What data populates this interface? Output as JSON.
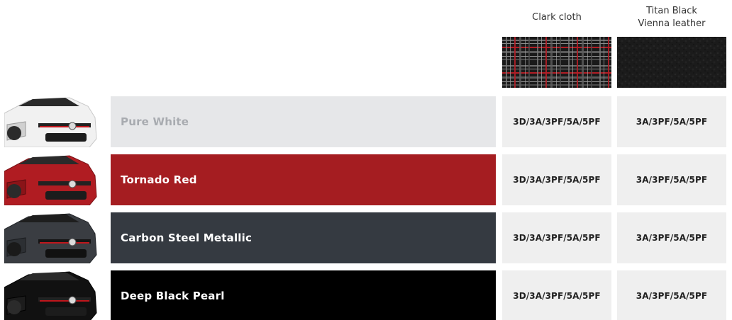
{
  "trims": [
    {
      "name": "Clark cloth",
      "swatch_icon": "plaid-fabric-swatch"
    },
    {
      "name": "Titan Black\nVienna leather",
      "swatch_icon": "black-leather-swatch"
    }
  ],
  "colors": [
    {
      "name": "Pure White",
      "block_color": "#e6e7e9",
      "text_color": "#a8abb0",
      "car_color": "#f2f2f2",
      "availability": [
        "3D/3A/3PF/5A/5PF",
        "3A/3PF/5A/5PF"
      ]
    },
    {
      "name": "Tornado Red",
      "block_color": "#a51d21",
      "text_color": "#ffffff",
      "car_color": "#b01c22",
      "availability": [
        "3D/3A/3PF/5A/5PF",
        "3A/3PF/5A/5PF"
      ]
    },
    {
      "name": "Carbon Steel Metallic",
      "block_color": "#353a41",
      "text_color": "#ffffff",
      "car_color": "#3a3d42",
      "availability": [
        "3D/3A/3PF/5A/5PF",
        "3A/3PF/5A/5PF"
      ]
    },
    {
      "name": "Deep Black Pearl",
      "block_color": "#000000",
      "text_color": "#ffffff",
      "car_color": "#111111",
      "availability": [
        "3D/3A/3PF/5A/5PF",
        "3A/3PF/5A/5PF"
      ]
    }
  ]
}
